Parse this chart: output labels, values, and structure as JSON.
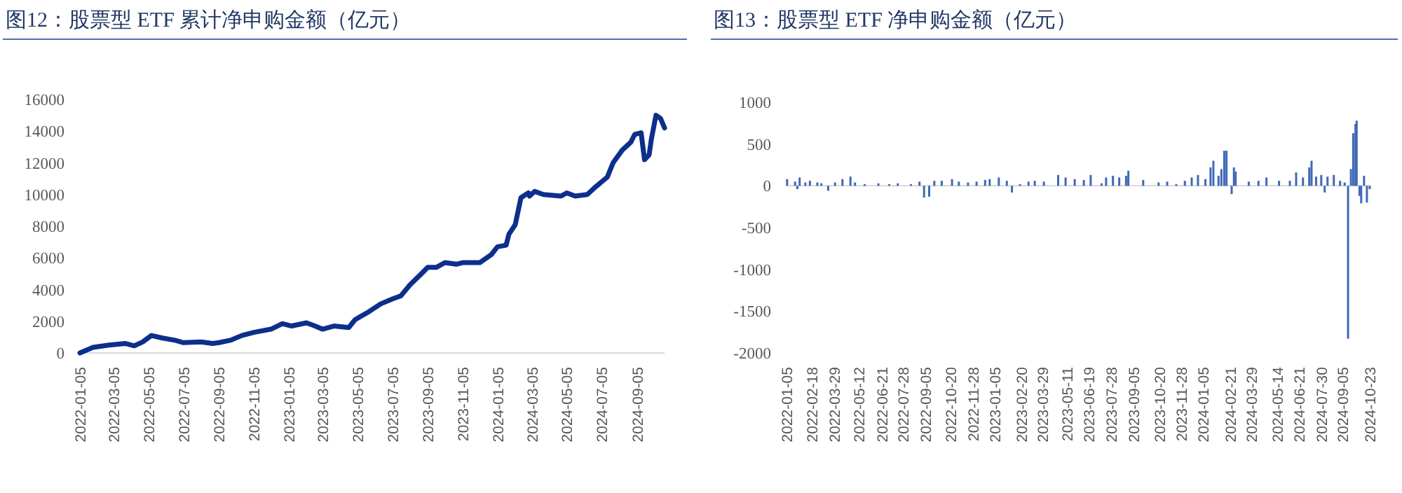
{
  "chart_data": [
    {
      "type": "line",
      "title": "图12：股票型 ETF 累计净申购金额（亿元）",
      "color": "#0d2f8c",
      "x": [
        "2022-01-05",
        "2022-01-28",
        "2022-02-25",
        "2022-03-25",
        "2022-04-10",
        "2022-04-25",
        "2022-05-10",
        "2022-05-28",
        "2022-06-20",
        "2022-07-05",
        "2022-08-05",
        "2022-08-25",
        "2022-09-05",
        "2022-09-25",
        "2022-10-15",
        "2022-11-05",
        "2022-12-05",
        "2022-12-25",
        "2023-01-10",
        "2023-02-05",
        "2023-02-20",
        "2023-03-05",
        "2023-03-25",
        "2023-04-20",
        "2023-05-01",
        "2023-05-25",
        "2023-06-15",
        "2023-07-05",
        "2023-07-20",
        "2023-08-05",
        "2023-08-25",
        "2023-09-05",
        "2023-09-20",
        "2023-10-05",
        "2023-10-25",
        "2023-11-05",
        "2023-12-05",
        "2023-12-25",
        "2024-01-05",
        "2024-01-20",
        "2024-01-25",
        "2024-02-05",
        "2024-02-15",
        "2024-02-28",
        "2024-03-01",
        "2024-03-10",
        "2024-03-25",
        "2024-04-25",
        "2024-05-05",
        "2024-05-20",
        "2024-06-10",
        "2024-06-25",
        "2024-07-15",
        "2024-07-25",
        "2024-08-10",
        "2024-08-25",
        "2024-09-01",
        "2024-09-12",
        "2024-09-18",
        "2024-09-26",
        "2024-09-30",
        "2024-10-08",
        "2024-10-16",
        "2024-10-23"
      ],
      "values": [
        0,
        350,
        500,
        600,
        450,
        700,
        1100,
        950,
        800,
        650,
        700,
        600,
        650,
        800,
        1100,
        1300,
        1500,
        1850,
        1700,
        1900,
        1700,
        1500,
        1700,
        1600,
        2100,
        2600,
        3100,
        3400,
        3600,
        4300,
        5000,
        5400,
        5400,
        5700,
        5600,
        5700,
        5700,
        6200,
        6700,
        6800,
        7500,
        8100,
        9800,
        10100,
        9900,
        10200,
        10000,
        9900,
        10100,
        9900,
        10000,
        10500,
        11100,
        12000,
        12800,
        13300,
        13800,
        13900,
        12200,
        12500,
        13500,
        15000,
        14800,
        14200
      ],
      "xlim": [
        "2022-01-05",
        "2024-10-23"
      ],
      "ylim": [
        0,
        16000
      ],
      "xticks": [
        "2022-01-05",
        "2022-03-05",
        "2022-05-05",
        "2022-07-05",
        "2022-09-05",
        "2022-11-05",
        "2023-01-05",
        "2023-03-05",
        "2023-05-05",
        "2023-07-05",
        "2023-09-05",
        "2023-11-05",
        "2024-01-05",
        "2024-03-05",
        "2024-05-05",
        "2024-07-05",
        "2024-09-05"
      ],
      "yticks": [
        0,
        2000,
        4000,
        6000,
        8000,
        10000,
        12000,
        14000,
        16000
      ]
    },
    {
      "type": "bar",
      "title": "图13：股票型 ETF 净申购金额（亿元）",
      "color": "#4068b8",
      "x": [
        "2022-01-06",
        "2022-01-20",
        "2022-01-24",
        "2022-01-28",
        "2022-02-07",
        "2022-02-15",
        "2022-02-28",
        "2022-03-07",
        "2022-03-19",
        "2022-03-31",
        "2022-04-13",
        "2022-04-27",
        "2022-05-05",
        "2022-05-22",
        "2022-06-15",
        "2022-07-04",
        "2022-07-19",
        "2022-08-11",
        "2022-08-26",
        "2022-09-03",
        "2022-09-12",
        "2022-09-21",
        "2022-10-04",
        "2022-10-22",
        "2022-11-03",
        "2022-11-19",
        "2022-12-04",
        "2022-12-19",
        "2022-12-27",
        "2023-01-12",
        "2023-01-26",
        "2023-02-04",
        "2023-02-18",
        "2023-03-05",
        "2023-03-16",
        "2023-04-01",
        "2023-04-26",
        "2023-05-09",
        "2023-05-25",
        "2023-06-10",
        "2023-06-22",
        "2023-07-11",
        "2023-07-19",
        "2023-07-31",
        "2023-08-11",
        "2023-08-23",
        "2023-08-27",
        "2023-09-22",
        "2023-10-19",
        "2023-11-03",
        "2023-11-19",
        "2023-12-04",
        "2023-12-16",
        "2023-12-27",
        "2024-01-09",
        "2024-01-18",
        "2024-01-23",
        "2024-02-01",
        "2024-02-06",
        "2024-02-11",
        "2024-02-15",
        "2024-02-24",
        "2024-02-28",
        "2024-03-02",
        "2024-03-25",
        "2024-04-11",
        "2024-04-25",
        "2024-05-17",
        "2024-06-05",
        "2024-06-16",
        "2024-06-28",
        "2024-07-09",
        "2024-07-13",
        "2024-07-21",
        "2024-07-30",
        "2024-08-05",
        "2024-08-10",
        "2024-08-21",
        "2024-09-01",
        "2024-09-09",
        "2024-09-15",
        "2024-09-20",
        "2024-09-24",
        "2024-09-28",
        "2024-09-30",
        "2024-10-05",
        "2024-10-08",
        "2024-10-13",
        "2024-10-18",
        "2024-10-23"
      ],
      "values": [
        80,
        50,
        -40,
        100,
        40,
        60,
        40,
        30,
        -60,
        40,
        80,
        110,
        40,
        20,
        30,
        20,
        30,
        20,
        50,
        -140,
        -130,
        60,
        60,
        80,
        50,
        40,
        50,
        70,
        80,
        100,
        60,
        -80,
        20,
        50,
        60,
        50,
        130,
        100,
        80,
        70,
        130,
        30,
        100,
        120,
        100,
        120,
        180,
        70,
        40,
        50,
        20,
        60,
        100,
        130,
        80,
        220,
        300,
        120,
        200,
        420,
        420,
        -100,
        220,
        170,
        50,
        60,
        100,
        60,
        60,
        160,
        100,
        220,
        300,
        110,
        130,
        -80,
        110,
        130,
        60,
        40,
        -1830,
        200,
        630,
        740,
        780,
        -120,
        -210,
        120,
        -200,
        -40
      ],
      "xlim": [
        "2022-01-05",
        "2024-10-23"
      ],
      "ylim": [
        -2000,
        1000
      ],
      "xticks": [
        "2022-01-05",
        "2022-02-18",
        "2022-03-29",
        "2022-05-12",
        "2022-06-21",
        "2022-07-28",
        "2022-09-05",
        "2022-10-20",
        "2022-11-28",
        "2023-01-05",
        "2023-02-20",
        "2023-03-29",
        "2023-05-11",
        "2023-06-19",
        "2023-07-28",
        "2023-09-05",
        "2023-10-20",
        "2023-11-28",
        "2024-01-05",
        "2024-02-21",
        "2024-03-29",
        "2024-05-14",
        "2024-06-21",
        "2024-07-30",
        "2024-09-05",
        "2024-10-23"
      ],
      "yticks": [
        -2000,
        -1500,
        -1000,
        -500,
        0,
        500,
        1000
      ]
    }
  ]
}
